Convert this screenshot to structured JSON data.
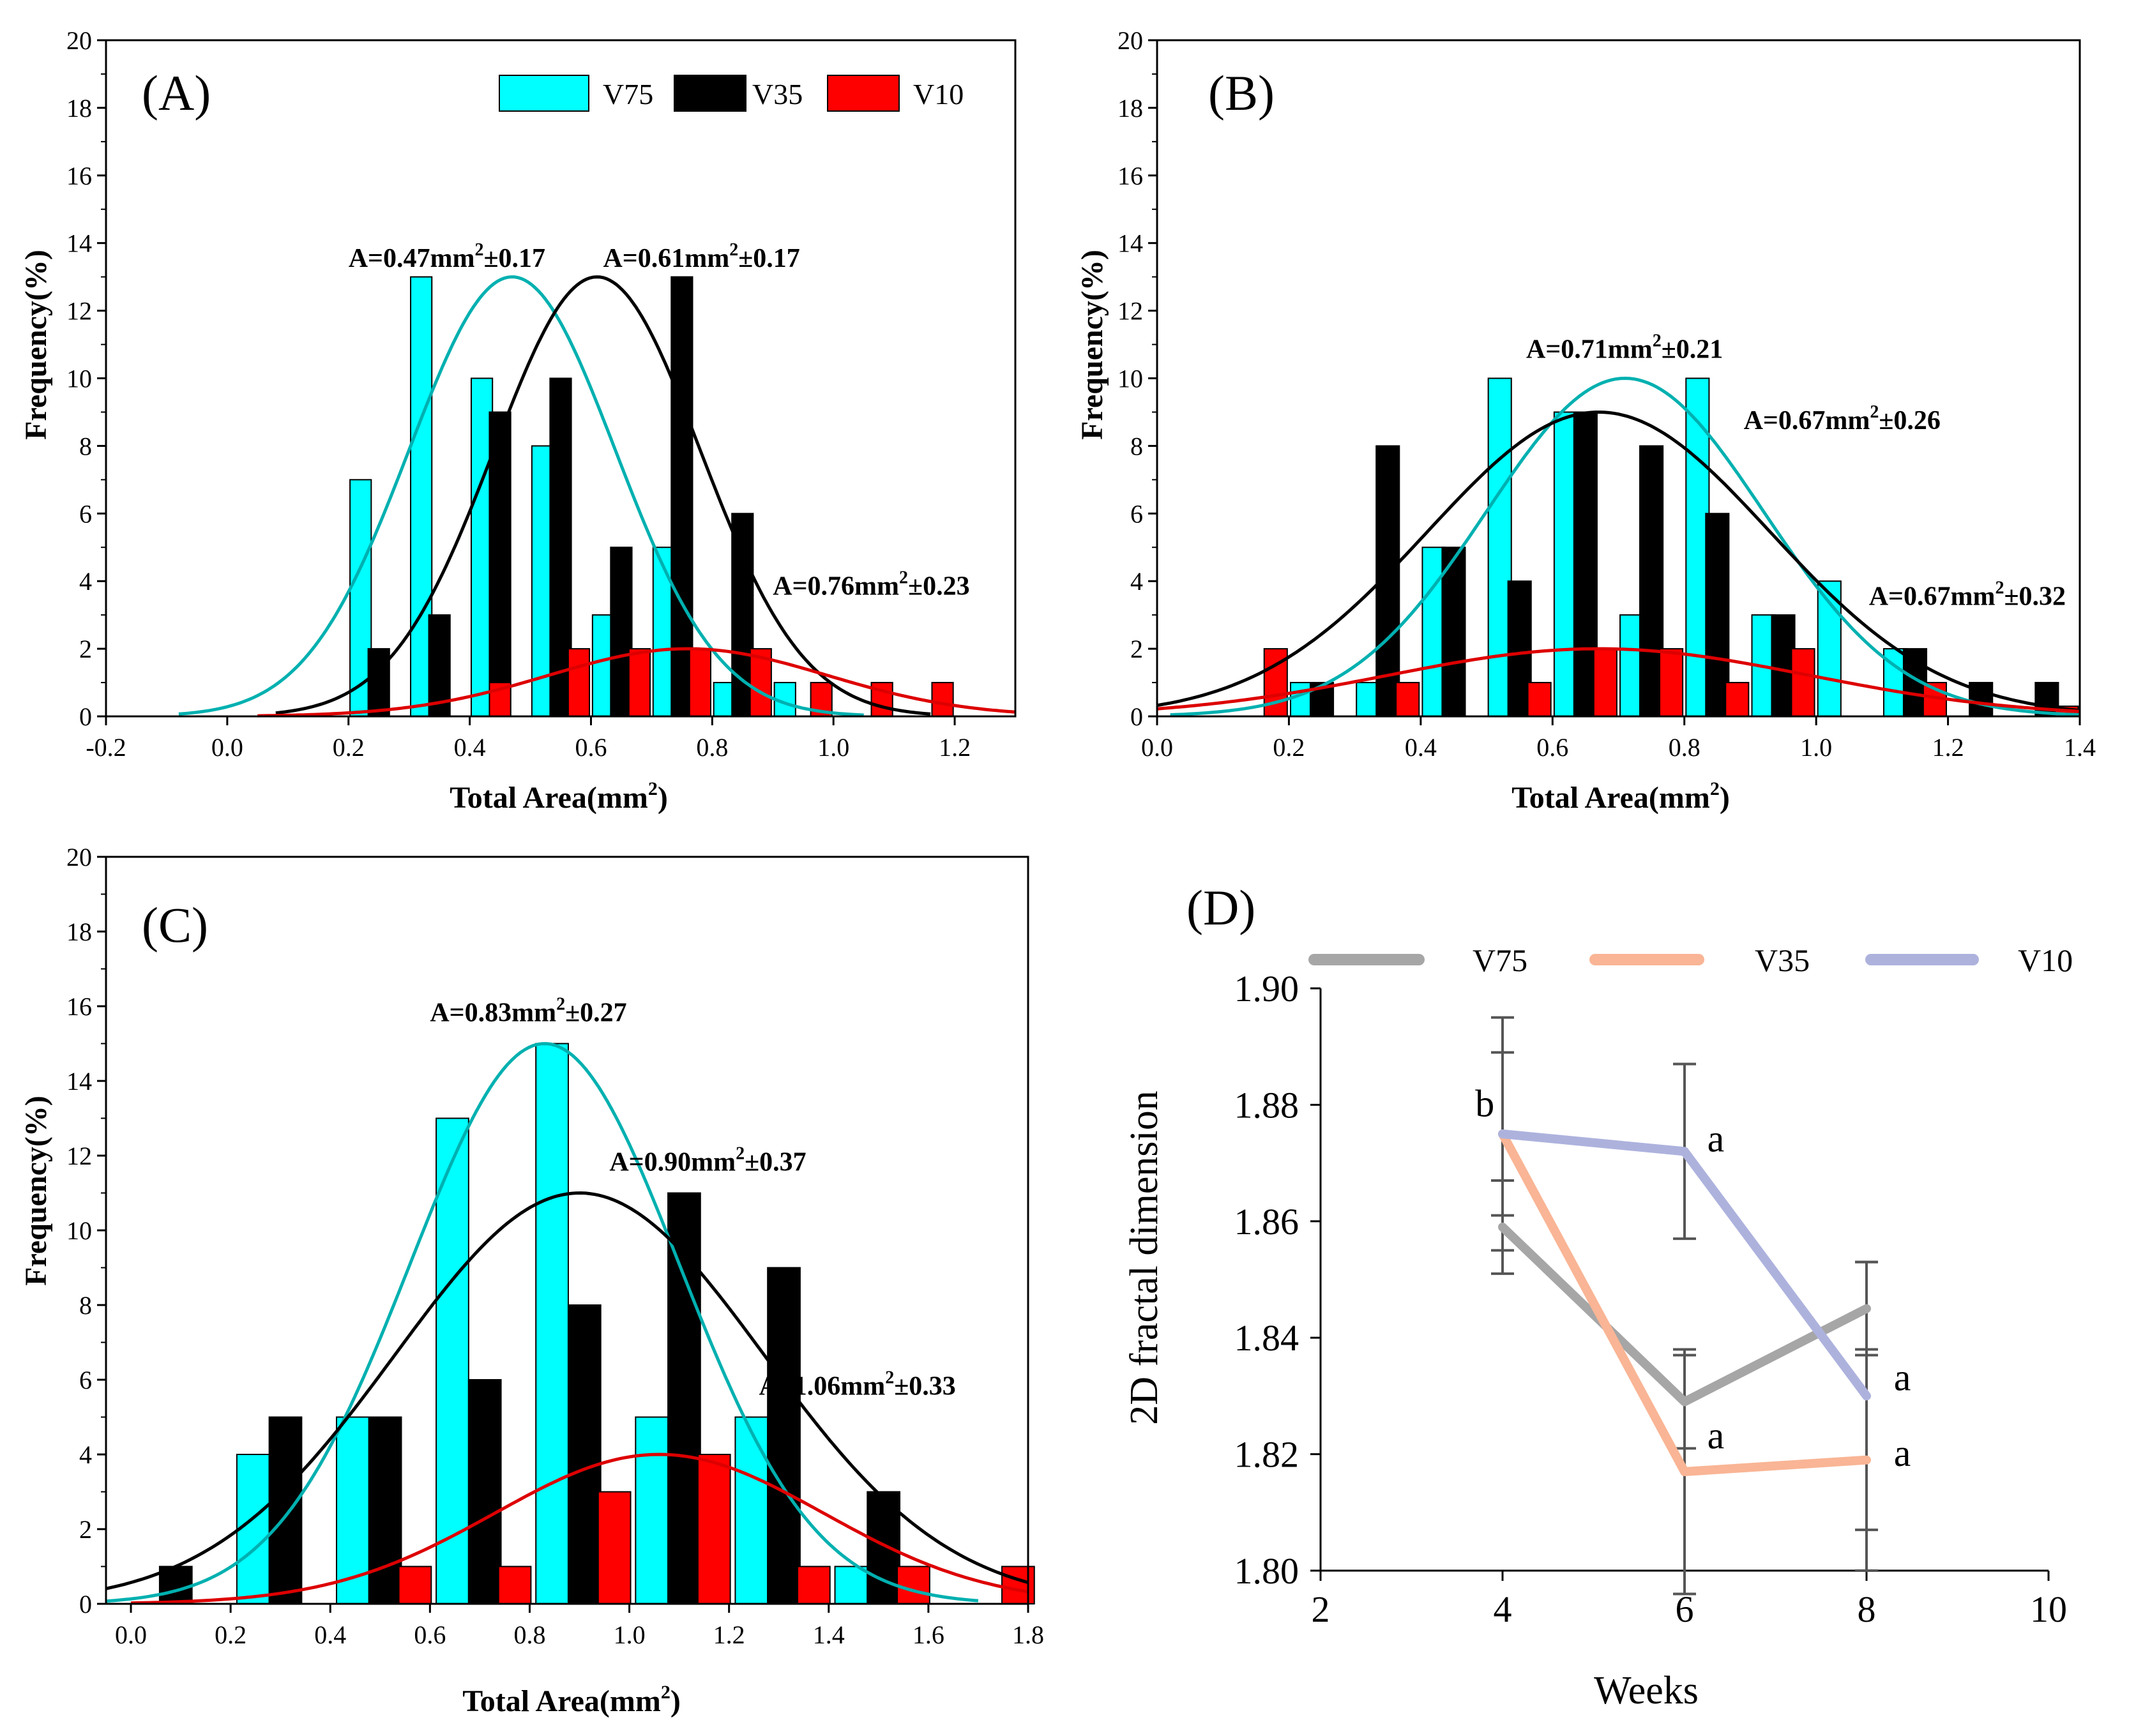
{
  "colors": {
    "v75_bar": "#00ffff",
    "v35_bar": "#000000",
    "v10_bar": "#ff0000",
    "v75_fit": "#00b0b0",
    "v35_fit": "#000000",
    "v10_fit": "#dd0000",
    "d_v75": "#a6a6a6",
    "d_v35": "#f9b595",
    "d_v10": "#adb2dd",
    "error": "#555555"
  },
  "legend_top": [
    "V75",
    "V35",
    "V10"
  ],
  "chart_data": [
    {
      "id": "A",
      "type": "bar",
      "panel_label": "(A)",
      "xlabel": "Total Area(mm",
      "xlabel_sup": "2",
      "xlabel_end": ")",
      "ylabel": "Frequency(%)",
      "xlim": [
        -0.2,
        1.3
      ],
      "ylim": [
        0,
        20
      ],
      "xticks": [
        -0.2,
        0.0,
        0.2,
        0.4,
        0.6,
        0.8,
        1.0,
        1.2
      ],
      "xtick_labels": [
        "-0.2",
        "0.0",
        "0.2",
        "0.4",
        "0.6",
        "0.8",
        "1.0",
        "1.2"
      ],
      "yticks": [
        0,
        2,
        4,
        6,
        8,
        10,
        12,
        14,
        16,
        18,
        20
      ],
      "ytick_labels": [
        "0",
        "2",
        "4",
        "6",
        "8",
        "10",
        "12",
        "14",
        "16",
        "18",
        "20"
      ],
      "bar_width": 0.035,
      "legend": [
        "V75",
        "V35",
        "V10"
      ],
      "series": [
        {
          "name": "V75",
          "color_key": "v75_bar",
          "x": [
            0.22,
            0.32,
            0.42,
            0.52,
            0.62,
            0.72,
            0.82,
            0.92
          ],
          "values": [
            7,
            13,
            10,
            8,
            3,
            5,
            1,
            1
          ]
        },
        {
          "name": "V35",
          "color_key": "v35_bar",
          "x": [
            0.25,
            0.35,
            0.45,
            0.55,
            0.65,
            0.75,
            0.85
          ],
          "values": [
            2,
            3,
            9,
            10,
            5,
            13,
            6
          ]
        },
        {
          "name": "V10",
          "color_key": "v10_bar",
          "x": [
            0.45,
            0.58,
            0.68,
            0.78,
            0.88,
            0.98,
            1.08,
            1.18
          ],
          "values": [
            1,
            2,
            2,
            2,
            2,
            1,
            1,
            1
          ]
        }
      ],
      "fits": [
        {
          "name": "V75",
          "color_key": "v75_fit",
          "mean": 0.47,
          "sd": 0.17,
          "peak": 13,
          "xmin": -0.08,
          "xmax": 1.05
        },
        {
          "name": "V35",
          "color_key": "v35_fit",
          "mean": 0.61,
          "sd": 0.17,
          "peak": 13,
          "xmin": 0.08,
          "xmax": 1.16
        },
        {
          "name": "V10",
          "color_key": "v10_fit",
          "mean": 0.76,
          "sd": 0.23,
          "peak": 2,
          "xmin": 0.05,
          "xmax": 1.3
        }
      ],
      "annotations": [
        {
          "pre": "A=0.47mm",
          "sup": "2",
          "post": "±0.17",
          "ax": 0.2,
          "ay": 13.3
        },
        {
          "pre": "A=0.61mm",
          "sup": "2",
          "post": "±0.17",
          "ax": 0.62,
          "ay": 13.3
        },
        {
          "pre": "A=0.76mm",
          "sup": "2",
          "post": "±0.23",
          "ax": 0.9,
          "ay": 3.6
        }
      ]
    },
    {
      "id": "B",
      "type": "bar",
      "panel_label": "(B)",
      "xlabel": "Total Area(mm",
      "xlabel_sup": "2",
      "xlabel_end": ")",
      "ylabel": "Frequency(%)",
      "xlim": [
        0.0,
        1.4
      ],
      "ylim": [
        0,
        20
      ],
      "xticks": [
        0.0,
        0.2,
        0.4,
        0.6,
        0.8,
        1.0,
        1.2,
        1.4
      ],
      "xtick_labels": [
        "0.0",
        "0.2",
        "0.4",
        "0.6",
        "0.8",
        "1.0",
        "1.2",
        "1.4"
      ],
      "yticks": [
        0,
        2,
        4,
        6,
        8,
        10,
        12,
        14,
        16,
        18,
        20
      ],
      "ytick_labels": [
        "0",
        "2",
        "4",
        "6",
        "8",
        "10",
        "12",
        "14",
        "16",
        "18",
        "20"
      ],
      "bar_width": 0.035,
      "legend": [],
      "series": [
        {
          "name": "V75",
          "color_key": "v75_bar",
          "x": [
            0.22,
            0.32,
            0.42,
            0.52,
            0.62,
            0.72,
            0.82,
            0.92,
            1.02,
            1.12
          ],
          "values": [
            1,
            1,
            5,
            10,
            9,
            3,
            10,
            3,
            4,
            2
          ]
        },
        {
          "name": "V35",
          "color_key": "v35_bar",
          "x": [
            0.25,
            0.35,
            0.45,
            0.55,
            0.65,
            0.75,
            0.85,
            0.95,
            1.15,
            1.25,
            1.35
          ],
          "values": [
            1,
            8,
            5,
            4,
            9,
            8,
            6,
            3,
            2,
            1,
            1
          ]
        },
        {
          "name": "V10",
          "color_key": "v10_bar",
          "x": [
            0.18,
            0.38,
            0.58,
            0.68,
            0.78,
            0.88,
            0.98,
            1.18,
            1.38
          ],
          "values": [
            2,
            1,
            1,
            2,
            2,
            1,
            2,
            1,
            0.3
          ]
        }
      ],
      "fits": [
        {
          "name": "V75",
          "color_key": "v75_fit",
          "mean": 0.71,
          "sd": 0.21,
          "peak": 10,
          "xmin": 0.02,
          "xmax": 1.4
        },
        {
          "name": "V35",
          "color_key": "v35_fit",
          "mean": 0.67,
          "sd": 0.26,
          "peak": 9,
          "xmin": 0.0,
          "xmax": 1.4
        },
        {
          "name": "V10",
          "color_key": "v10_fit",
          "mean": 0.67,
          "sd": 0.32,
          "peak": 2,
          "xmin": 0.0,
          "xmax": 1.4
        }
      ],
      "annotations": [
        {
          "pre": "A=0.71mm",
          "sup": "2",
          "post": "±0.21",
          "ax": 0.56,
          "ay": 10.6
        },
        {
          "pre": "A=0.67mm",
          "sup": "2",
          "post": "±0.26",
          "ax": 0.89,
          "ay": 8.5
        },
        {
          "pre": "A=0.67mm",
          "sup": "2",
          "post": "±0.32",
          "ax": 1.08,
          "ay": 3.3
        }
      ]
    },
    {
      "id": "C",
      "type": "bar",
      "panel_label": "(C)",
      "xlabel": "Total Area(mm",
      "xlabel_sup": "2",
      "xlabel_end": ")",
      "ylabel": "Frequency(%)",
      "xlim": [
        -0.05,
        1.8
      ],
      "ylim": [
        0,
        20
      ],
      "xticks": [
        0.0,
        0.2,
        0.4,
        0.6,
        0.8,
        1.0,
        1.2,
        1.4,
        1.6,
        1.8
      ],
      "xtick_labels": [
        "0.0",
        "0.2",
        "0.4",
        "0.6",
        "0.8",
        "1.0",
        "1.2",
        "1.4",
        "1.6",
        "1.8"
      ],
      "yticks": [
        0,
        2,
        4,
        6,
        8,
        10,
        12,
        14,
        16,
        18,
        20
      ],
      "ytick_labels": [
        "0",
        "2",
        "4",
        "6",
        "8",
        "10",
        "12",
        "14",
        "16",
        "18",
        "20"
      ],
      "bar_width": 0.065,
      "legend": [],
      "series": [
        {
          "name": "V75",
          "color_key": "v75_bar",
          "x": [
            0.245,
            0.445,
            0.645,
            0.845,
            1.045,
            1.245,
            1.445
          ],
          "values": [
            4,
            5,
            13,
            15,
            5,
            5,
            1
          ]
        },
        {
          "name": "V35",
          "color_key": "v35_bar",
          "x": [
            0.09,
            0.31,
            0.51,
            0.71,
            0.91,
            1.11,
            1.31,
            1.51
          ],
          "values": [
            1,
            5,
            5,
            6,
            8,
            11,
            9,
            3
          ]
        },
        {
          "name": "V10",
          "color_key": "v10_bar",
          "x": [
            0.57,
            0.77,
            0.97,
            1.17,
            1.37,
            1.57,
            1.78
          ],
          "values": [
            1,
            1,
            3,
            4,
            1,
            1,
            1
          ]
        }
      ],
      "fits": [
        {
          "name": "V75",
          "color_key": "v75_fit",
          "mean": 0.83,
          "sd": 0.27,
          "peak": 15,
          "xmin": -0.05,
          "xmax": 1.7
        },
        {
          "name": "V35",
          "color_key": "v35_fit",
          "mean": 0.9,
          "sd": 0.37,
          "peak": 11,
          "xmin": -0.05,
          "xmax": 1.8
        },
        {
          "name": "V10",
          "color_key": "v10_fit",
          "mean": 1.06,
          "sd": 0.33,
          "peak": 4,
          "xmin": 0.0,
          "xmax": 1.8
        }
      ],
      "annotations": [
        {
          "pre": "A=0.83mm",
          "sup": "2",
          "post": "±0.27",
          "ax": 0.6,
          "ay": 15.6
        },
        {
          "pre": "A=0.90mm",
          "sup": "2",
          "post": "±0.37",
          "ax": 0.96,
          "ay": 11.6
        },
        {
          "pre": "A=1.06mm",
          "sup": "2",
          "post": "±0.33",
          "ax": 1.26,
          "ay": 5.6
        }
      ]
    },
    {
      "id": "D",
      "type": "line",
      "panel_label": "(D)",
      "xlabel": "Weeks",
      "ylabel": "2D fractal dimension",
      "xlim": [
        2,
        10
      ],
      "ylim": [
        1.8,
        1.9
      ],
      "xticks": [
        2,
        4,
        6,
        8,
        10
      ],
      "xtick_labels": [
        "2",
        "4",
        "6",
        "8",
        "10"
      ],
      "yticks": [
        1.8,
        1.82,
        1.84,
        1.86,
        1.88,
        1.9
      ],
      "ytick_labels": [
        "1.80",
        "1.82",
        "1.84",
        "1.86",
        "1.88",
        "1.90"
      ],
      "legend": [
        "V75",
        "V35",
        "V10"
      ],
      "x": [
        4,
        6,
        8
      ],
      "series": [
        {
          "name": "V75",
          "color_key": "d_v75",
          "values": [
            1.859,
            1.829,
            1.845
          ],
          "err": [
            0.008,
            0.008,
            0.008
          ]
        },
        {
          "name": "V35",
          "color_key": "d_v35",
          "values": [
            1.875,
            1.817,
            1.819
          ],
          "err": [
            0.014,
            0.021,
            0.019
          ]
        },
        {
          "name": "V10",
          "color_key": "d_v10",
          "values": [
            1.875,
            1.872,
            1.83
          ],
          "err": [
            0.02,
            0.015,
            0.023
          ]
        }
      ],
      "letters": [
        {
          "text": "b",
          "x": 3.7,
          "y": 1.878
        },
        {
          "text": "a",
          "x": 6.25,
          "y": 1.872
        },
        {
          "text": "a",
          "x": 6.25,
          "y": 1.821
        },
        {
          "text": "a",
          "x": 8.3,
          "y": 1.831
        },
        {
          "text": "a",
          "x": 8.3,
          "y": 1.818
        }
      ]
    }
  ]
}
